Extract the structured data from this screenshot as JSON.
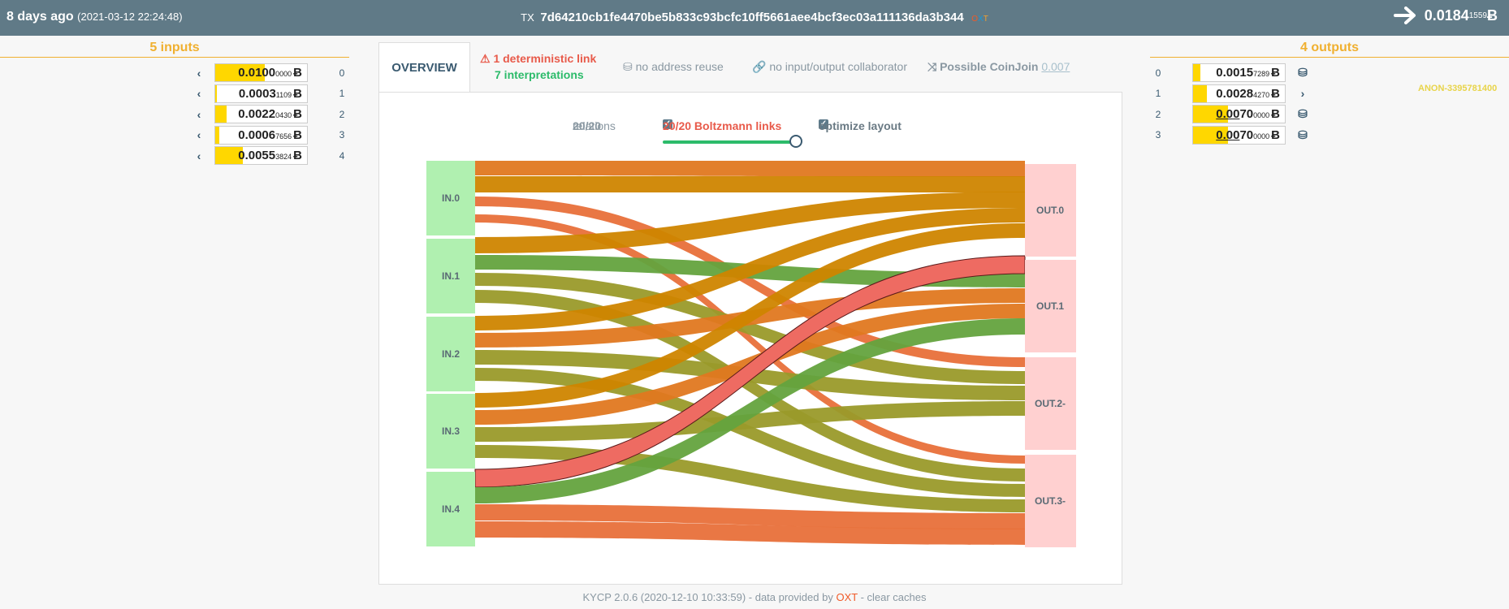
{
  "header": {
    "age": "8 days ago",
    "timestamp": "(2021-03-12 22:24:48)",
    "tx_label": "TX",
    "txid": "7d64210cb1fe4470be5b833c93bcfc10ff5661aee4bcf3ec03a111136da3b344",
    "oxt": [
      "O",
      "X",
      "T"
    ],
    "total_main": "0.0184",
    "total_sub": "1559",
    "btc": "Ƀ"
  },
  "inputs": {
    "heading": "5 inputs",
    "items": [
      {
        "main": "0.0100",
        "sub": "0000",
        "idx": "0",
        "fill": 0.54
      },
      {
        "main": "0.0003",
        "sub": "1109",
        "idx": "1",
        "fill": 0.02
      },
      {
        "main": "0.0022",
        "sub": "0430",
        "idx": "2",
        "fill": 0.12
      },
      {
        "main": "0.0006",
        "sub": "7656",
        "idx": "3",
        "fill": 0.04
      },
      {
        "main": "0.0055",
        "sub": "3824",
        "idx": "4",
        "fill": 0.3
      }
    ]
  },
  "outputs": {
    "heading": "4 outputs",
    "items": [
      {
        "main": "0.0015",
        "sub": "7289",
        "idx": "0",
        "fill": 0.08,
        "icon": "coins-icon"
      },
      {
        "main": "0.0028",
        "sub": "4270",
        "idx": "1",
        "fill": 0.15,
        "icon": "chevron-right-icon"
      },
      {
        "main_u": "0.00",
        "main": "70",
        "sub": "0000",
        "idx": "2",
        "fill": 0.38,
        "icon": "coins-icon"
      },
      {
        "main_u": "0.00",
        "main": "70",
        "sub": "0000",
        "idx": "3",
        "fill": 0.38,
        "icon": "coins-icon"
      }
    ],
    "anon_label": "ANON-3395781400"
  },
  "tabs": {
    "overview": "OVERVIEW",
    "deterministic": "1 deterministic link",
    "interpretations": "7 interpretations",
    "reuse": "no address reuse",
    "collab": "no input/output collaborator",
    "coinjoin": "Possible CoinJoin",
    "coinjoin_score": "0.007"
  },
  "controls": {
    "relations_count": "20/20",
    "relations_label": "relations",
    "boltzmann": "20/20 Boltzmann links",
    "optimize": "optimize layout"
  },
  "sankey": {
    "inputs": [
      "IN.0",
      "IN.1",
      "IN.2",
      "IN.3",
      "IN.4"
    ],
    "outputs": [
      "OUT.0",
      "OUT.1",
      "OUT.2-",
      "OUT.3-"
    ]
  },
  "footer": {
    "version": "KYCP 2.0.6 (2020-12-10 10:33:59) - data provided by ",
    "oxt": "OXT",
    "tail": " - clear caches"
  },
  "colors": {
    "header": "#607a87",
    "accent": "#f0b030",
    "orange": "#e07820",
    "gold": "#cf8500",
    "olive": "#9a9a2a",
    "green": "#64a33e",
    "salmon": "#e8703a",
    "red": "#ee6b62",
    "input_node": "#b0f0b0",
    "output_node": "#ffd0d0"
  }
}
